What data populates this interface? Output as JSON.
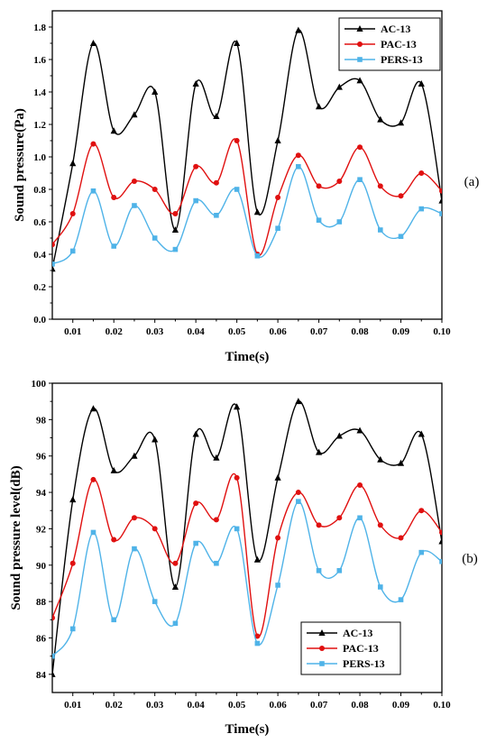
{
  "chart_data": [
    {
      "type": "line",
      "panel_tag": "(a)",
      "xlabel": "Time(s)",
      "ylabel": "Sound pressure(Pa)",
      "xlim": [
        0.005,
        0.1
      ],
      "ylim": [
        0.0,
        1.9
      ],
      "x_ticks": [
        0.01,
        0.02,
        0.03,
        0.04,
        0.05,
        0.06,
        0.07,
        0.08,
        0.09,
        0.1
      ],
      "x_tick_labels": [
        "0.01",
        "0.02",
        "0.03",
        "0.04",
        "0.05",
        "0.06",
        "0.07",
        "0.08",
        "0.09",
        "0.10"
      ],
      "y_ticks": [
        0.0,
        0.2,
        0.4,
        0.6,
        0.8,
        1.0,
        1.2,
        1.4,
        1.6,
        1.8
      ],
      "y_tick_labels": [
        "0.0",
        "0.2",
        "0.4",
        "0.6",
        "0.8",
        "1.0",
        "1.2",
        "1.4",
        "1.6",
        "1.8"
      ],
      "legend_position": "top-right",
      "x": [
        0.005,
        0.01,
        0.015,
        0.02,
        0.025,
        0.03,
        0.035,
        0.04,
        0.045,
        0.05,
        0.055,
        0.06,
        0.065,
        0.07,
        0.075,
        0.08,
        0.085,
        0.09,
        0.095,
        0.1
      ],
      "series": [
        {
          "name": "AC-13",
          "color": "#000000",
          "marker": "triangle",
          "values": [
            0.31,
            0.96,
            1.7,
            1.16,
            1.26,
            1.4,
            0.55,
            1.45,
            1.25,
            1.7,
            0.66,
            1.1,
            1.78,
            1.31,
            1.43,
            1.47,
            1.23,
            1.21,
            1.45,
            0.73
          ]
        },
        {
          "name": "PAC-13",
          "color": "#e01010",
          "marker": "circle",
          "values": [
            0.46,
            0.65,
            1.08,
            0.75,
            0.85,
            0.8,
            0.65,
            0.94,
            0.84,
            1.1,
            0.4,
            0.75,
            1.01,
            0.82,
            0.85,
            1.06,
            0.82,
            0.76,
            0.9,
            0.79
          ]
        },
        {
          "name": "PERS-13",
          "color": "#4fb3e8",
          "marker": "square",
          "values": [
            0.34,
            0.42,
            0.79,
            0.45,
            0.7,
            0.5,
            0.43,
            0.73,
            0.64,
            0.8,
            0.39,
            0.56,
            0.94,
            0.61,
            0.6,
            0.86,
            0.55,
            0.51,
            0.68,
            0.65
          ]
        }
      ]
    },
    {
      "type": "line",
      "panel_tag": "(b)",
      "xlabel": "Time(s)",
      "ylabel": "Sound pressure level(dB)",
      "xlim": [
        0.005,
        0.1
      ],
      "ylim": [
        83.0,
        100.0
      ],
      "x_ticks": [
        0.01,
        0.02,
        0.03,
        0.04,
        0.05,
        0.06,
        0.07,
        0.08,
        0.09,
        0.1
      ],
      "x_tick_labels": [
        "0.01",
        "0.02",
        "0.03",
        "0.04",
        "0.05",
        "0.06",
        "0.07",
        "0.08",
        "0.09",
        "0.10"
      ],
      "y_ticks": [
        84,
        86,
        88,
        90,
        92,
        94,
        96,
        98,
        100
      ],
      "y_tick_labels": [
        "84",
        "86",
        "88",
        "90",
        "92",
        "94",
        "96",
        "98",
        "100"
      ],
      "legend_position": "bottom-middle",
      "x": [
        0.005,
        0.01,
        0.015,
        0.02,
        0.025,
        0.03,
        0.035,
        0.04,
        0.045,
        0.05,
        0.055,
        0.06,
        0.065,
        0.07,
        0.075,
        0.08,
        0.085,
        0.09,
        0.095,
        0.1
      ],
      "series": [
        {
          "name": "AC-13",
          "color": "#000000",
          "marker": "triangle",
          "values": [
            84.0,
            93.6,
            98.6,
            95.2,
            96.0,
            96.9,
            88.8,
            97.2,
            95.9,
            98.7,
            90.3,
            94.8,
            99.0,
            96.2,
            97.1,
            97.4,
            95.8,
            95.6,
            97.2,
            91.3
          ]
        },
        {
          "name": "PAC-13",
          "color": "#e01010",
          "marker": "circle",
          "values": [
            87.1,
            90.1,
            94.7,
            91.4,
            92.6,
            92.0,
            90.1,
            93.4,
            92.5,
            94.8,
            86.1,
            91.5,
            94.0,
            92.2,
            92.6,
            94.4,
            92.2,
            91.5,
            93.0,
            91.8
          ]
        },
        {
          "name": "PERS-13",
          "color": "#4fb3e8",
          "marker": "square",
          "values": [
            85.0,
            86.5,
            91.8,
            87.0,
            90.9,
            88.0,
            86.8,
            91.2,
            90.1,
            92.0,
            85.7,
            88.9,
            93.5,
            89.7,
            89.7,
            92.6,
            88.8,
            88.1,
            90.7,
            90.2
          ]
        }
      ]
    }
  ]
}
